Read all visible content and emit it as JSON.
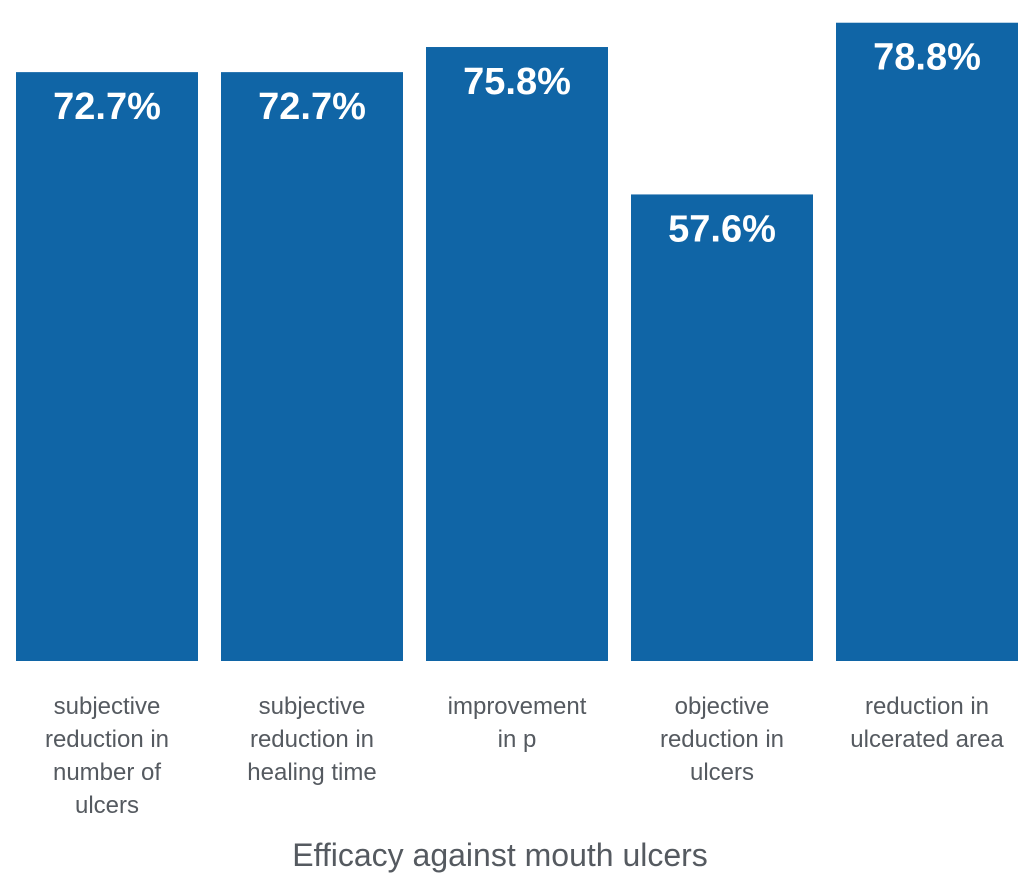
{
  "chart_data": {
    "type": "bar",
    "categories": [
      [
        "subjective",
        "reduction in",
        "number of",
        "ulcers"
      ],
      [
        "subjective",
        "reduction in",
        "healing time"
      ],
      [
        "improvement",
        "in p"
      ],
      [
        "objective",
        "reduction in",
        "ulcers"
      ],
      [
        "reduction in",
        "ulcerated area"
      ]
    ],
    "values": [
      72.7,
      72.7,
      75.8,
      57.6,
      78.8
    ],
    "value_labels": [
      "72.7%",
      "72.7%",
      "75.8%",
      "57.6%",
      "78.8%"
    ],
    "xlabel": "Efficacy against mouth ulcers",
    "ylim": [
      0,
      80
    ],
    "grid": false,
    "colors": {
      "bar": "#1065a6",
      "text": "#555a60",
      "bar_label": "#ffffff"
    }
  }
}
